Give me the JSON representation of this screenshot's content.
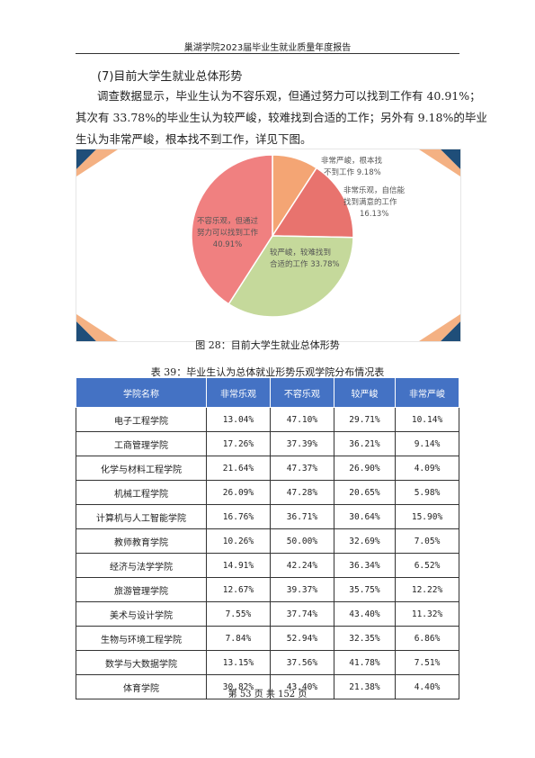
{
  "header": {
    "title": "巢湖学院2023届毕业生就业质量年度报告"
  },
  "section": {
    "title": "(7)目前大学生就业总体形势"
  },
  "paragraph": {
    "line1": "调查数据显示，毕业生认为不容乐观，但通过努力可以找到工作有 40.91%；",
    "line2": "其次有 33.78%的毕业生认为较严峻，较难找到合适的工作；另外有 9.18%的毕业",
    "line3": "生认为非常严峻，根本找不到工作，详见下图。"
  },
  "chart_data": {
    "type": "pie",
    "slices": [
      {
        "label_lines": [
          "非常严峻，根本找",
          "不到工作 9.18%"
        ],
        "value": 9.18,
        "color": "#f4a574"
      },
      {
        "label_lines": [
          "非常乐观，自信能",
          "找到满意的工作",
          "16.13%"
        ],
        "value": 16.13,
        "color": "#e8736e"
      },
      {
        "label_lines": [
          "较严峻，较难找到",
          "合适的工作 33.78%"
        ],
        "value": 33.78,
        "color": "#c5d99b"
      },
      {
        "label_lines": [
          "不容乐观，但通过",
          "努力可以找到工作",
          "40.91%"
        ],
        "value": 40.91,
        "color": "#f08080"
      }
    ]
  },
  "figure": {
    "caption": "图 28：目前大学生就业总体形势"
  },
  "table": {
    "caption": "表 39：毕业生认为总体就业形势乐观学院分布情况表",
    "headers": [
      "学院名称",
      "非常乐观",
      "不容乐观",
      "较严峻",
      "非常严峻"
    ],
    "rows": [
      [
        "电子工程学院",
        "13.04%",
        "47.10%",
        "29.71%",
        "10.14%"
      ],
      [
        "工商管理学院",
        "17.26%",
        "37.39%",
        "36.21%",
        "9.14%"
      ],
      [
        "化学与材料工程学院",
        "21.64%",
        "47.37%",
        "26.90%",
        "4.09%"
      ],
      [
        "机械工程学院",
        "26.09%",
        "47.28%",
        "20.65%",
        "5.98%"
      ],
      [
        "计算机与人工智能学院",
        "16.76%",
        "36.71%",
        "30.64%",
        "15.90%"
      ],
      [
        "教师教育学院",
        "10.26%",
        "50.00%",
        "32.69%",
        "7.05%"
      ],
      [
        "经济与法学学院",
        "14.91%",
        "42.24%",
        "36.34%",
        "6.52%"
      ],
      [
        "旅游管理学院",
        "12.67%",
        "39.37%",
        "35.75%",
        "12.22%"
      ],
      [
        "美术与设计学院",
        "7.55%",
        "37.74%",
        "43.40%",
        "11.32%"
      ],
      [
        "生物与环境工程学院",
        "7.84%",
        "52.94%",
        "32.35%",
        "6.86%"
      ],
      [
        "数学与大数据学院",
        "13.15%",
        "37.56%",
        "41.78%",
        "7.51%"
      ],
      [
        "体育学院",
        "30.82%",
        "43.40%",
        "21.38%",
        "4.40%"
      ]
    ]
  },
  "footer": {
    "page_label": "第 53 页 共 152 页"
  }
}
